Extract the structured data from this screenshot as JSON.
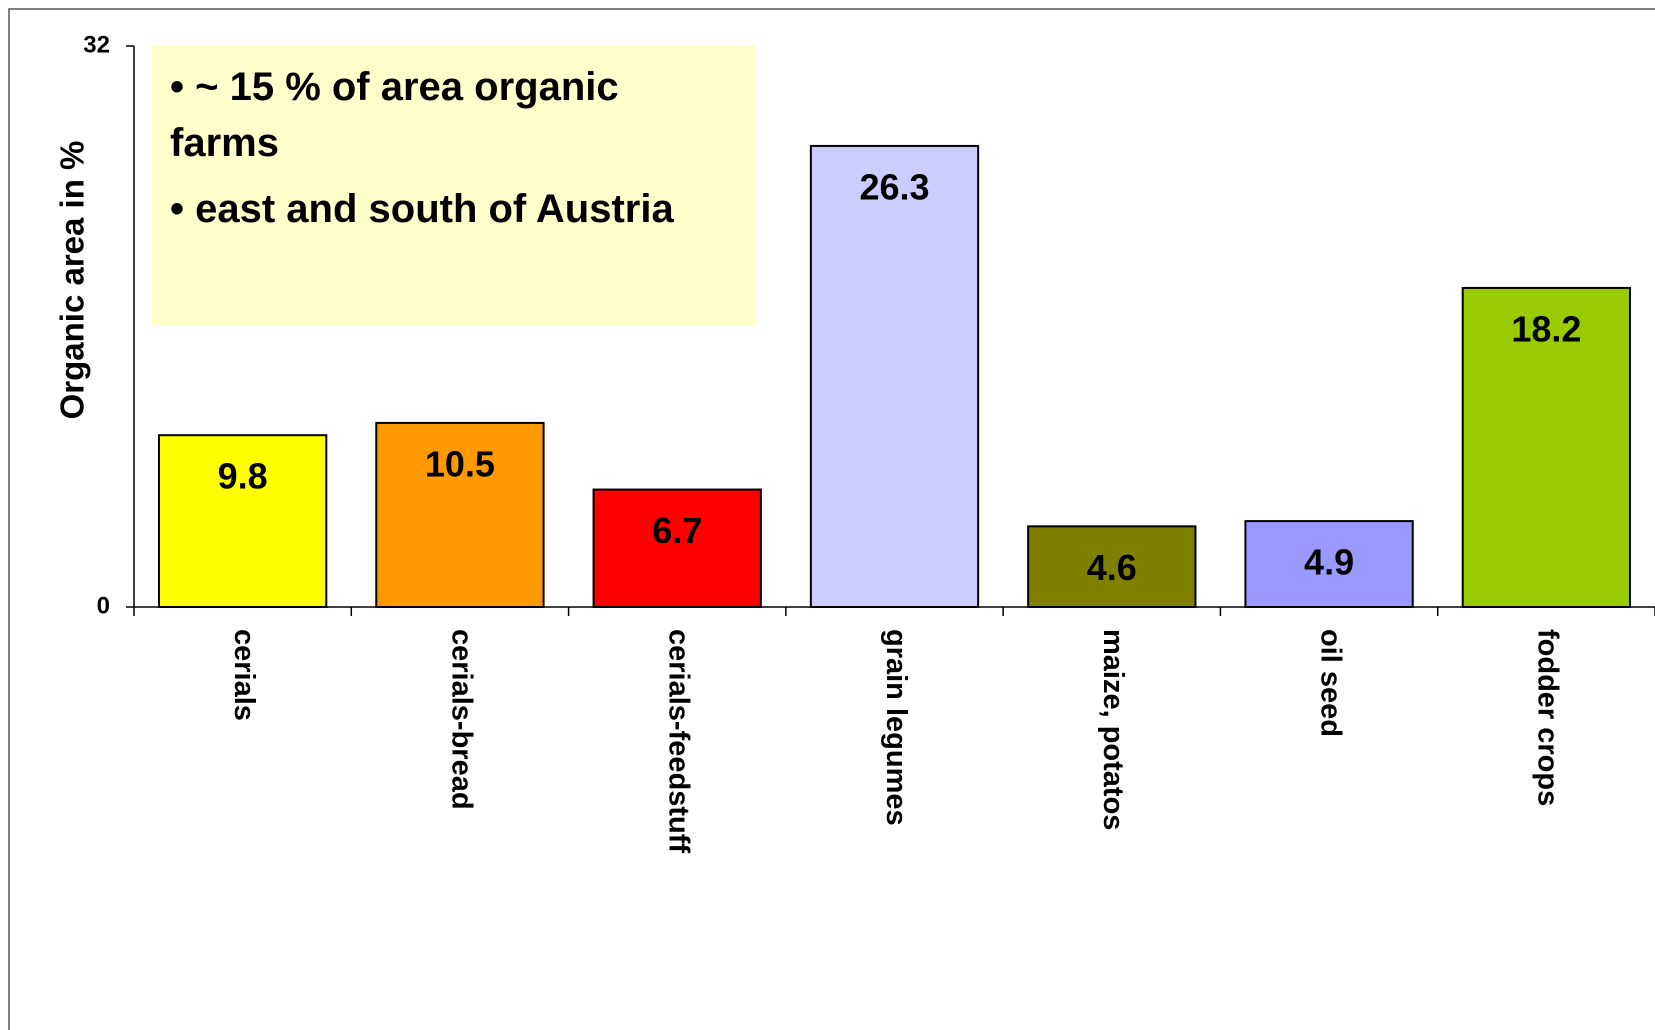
{
  "chart_data": {
    "type": "bar",
    "y_label": "Organic area in %",
    "annotations": [
      "• ~ 15 % of area organic farms",
      "• east and south of Austria"
    ],
    "categories": [
      "cerials",
      "cerials-bread",
      "cerials-feedstuff",
      "grain legumes",
      "maize, potatos",
      "oil seed",
      "fodder crops"
    ],
    "values": [
      9.8,
      10.5,
      6.7,
      26.3,
      4.6,
      4.9,
      18.2
    ],
    "colors": [
      "#ffff00",
      "#ff9900",
      "#ff0000",
      "#ccccff",
      "#808000",
      "#9999ff",
      "#99cc00"
    ],
    "ylim": [
      0,
      32
    ],
    "yticks": [
      0,
      32
    ],
    "grid": false
  }
}
